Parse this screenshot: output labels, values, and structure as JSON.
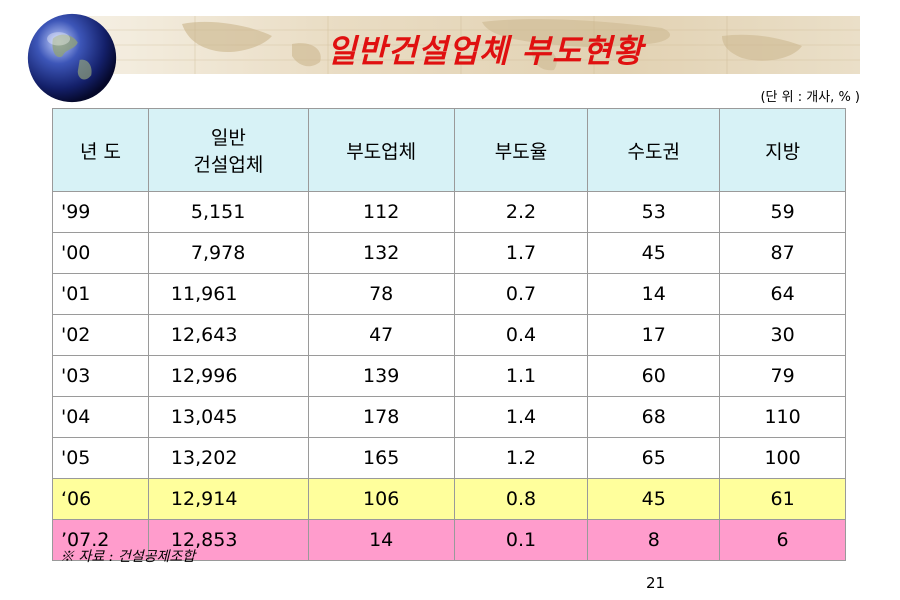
{
  "title": "일반건설업체 부도현황",
  "unit_note": "(단 위 : 개사, % )",
  "table": {
    "headers": [
      {
        "line1": "년 도",
        "line2": ""
      },
      {
        "line1": "일반",
        "line2": "건설업체"
      },
      {
        "line1": "부도업체",
        "line2": ""
      },
      {
        "line1": "부도율",
        "line2": ""
      },
      {
        "line1": "수도권",
        "line2": ""
      },
      {
        "line1": "지방",
        "line2": ""
      }
    ],
    "rows": [
      {
        "cells": [
          "'99",
          "5,151",
          "112",
          "2.2",
          "53",
          "59"
        ],
        "highlight": "none"
      },
      {
        "cells": [
          "'00",
          "7,978",
          "132",
          "1.7",
          "45",
          "87"
        ],
        "highlight": "none"
      },
      {
        "cells": [
          "'01",
          "11,961",
          "78",
          "0.7",
          "14",
          "64"
        ],
        "highlight": "none"
      },
      {
        "cells": [
          "'02",
          "12,643",
          "47",
          "0.4",
          "17",
          "30"
        ],
        "highlight": "none"
      },
      {
        "cells": [
          "'03",
          "12,996",
          "139",
          "1.1",
          "60",
          "79"
        ],
        "highlight": "none"
      },
      {
        "cells": [
          "'04",
          "13,045",
          "178",
          "1.4",
          "68",
          "110"
        ],
        "highlight": "none"
      },
      {
        "cells": [
          "'05",
          "13,202",
          "165",
          "1.2",
          "65",
          "100"
        ],
        "highlight": "none"
      },
      {
        "cells": [
          "‘06",
          "12,914",
          "106",
          "0.8",
          "45",
          "61"
        ],
        "highlight": "yellow"
      },
      {
        "cells": [
          "’07.2",
          "12,853",
          "14",
          "0.1",
          "8",
          "6"
        ],
        "highlight": "pink"
      }
    ]
  },
  "source": "※ 자료 : 건설공제조합",
  "page_number": "21",
  "colors": {
    "title": "#e01010",
    "header_bg": "#d7f2f6",
    "highlight_yellow": "#ffff9c",
    "highlight_pink": "#ff9ccc"
  },
  "icons": {
    "banner": "world-map-banner",
    "globe": "globe-icon"
  }
}
